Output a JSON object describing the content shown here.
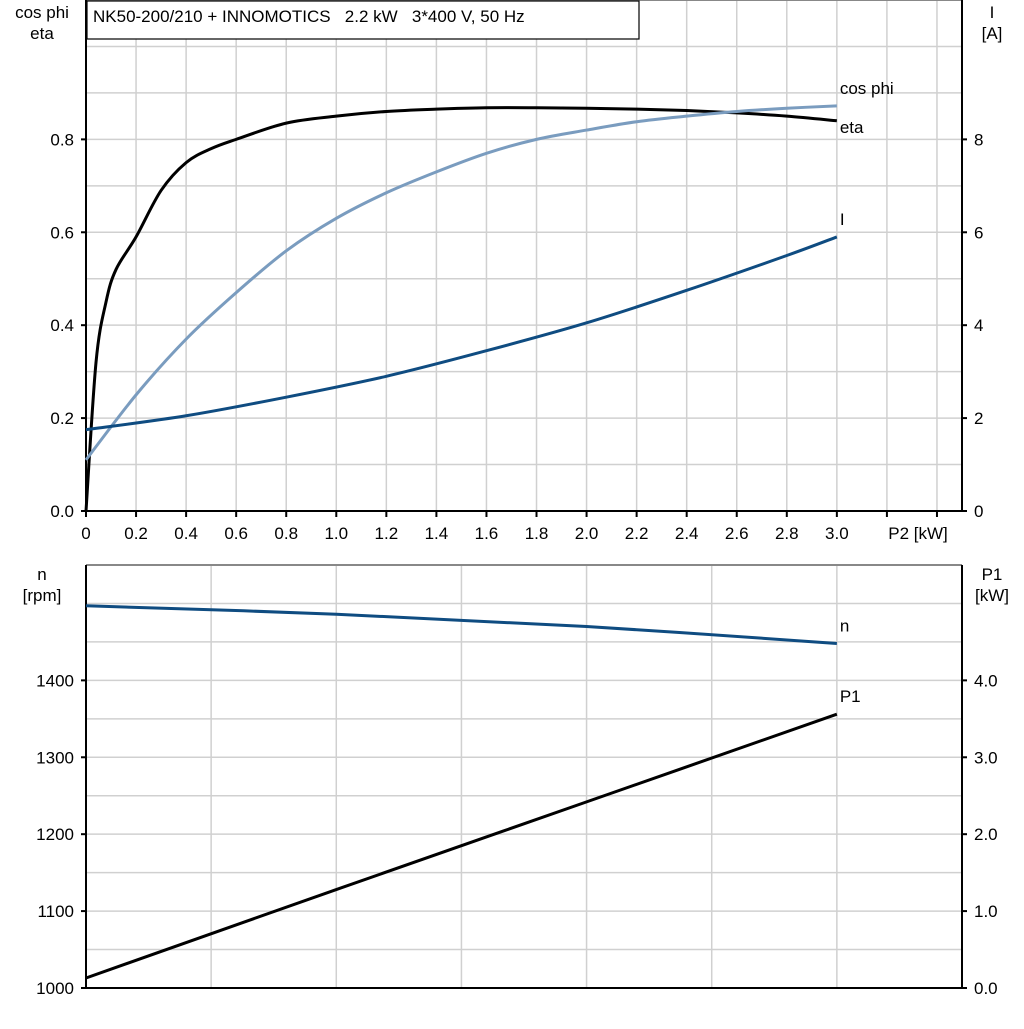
{
  "chart_data": [
    {
      "type": "line",
      "title": "NK50-200/210 + INNOMOTICS   2.2 kW   3*400 V, 50 Hz",
      "xlabel": "P2 [kW]",
      "ylabel_left": [
        "cos phi",
        "eta"
      ],
      "ylabel_right": [
        "I",
        "[A]"
      ],
      "xlim": [
        0,
        3.5
      ],
      "ylim_left": [
        0,
        1.1
      ],
      "ylim_right": [
        0,
        11
      ],
      "grid": true,
      "x_ticks": [
        "0",
        "0.2",
        "0.4",
        "0.6",
        "0.8",
        "1.0",
        "1.2",
        "1.4",
        "1.6",
        "1.8",
        "2.0",
        "2.2",
        "2.4",
        "2.6",
        "2.8",
        "3.0"
      ],
      "y_ticks_left": [
        "0.0",
        "0.2",
        "0.4",
        "0.6",
        "0.8"
      ],
      "y_ticks_right": [
        "0",
        "2",
        "4",
        "6",
        "8"
      ],
      "series": [
        {
          "name": "eta",
          "axis": "left",
          "color": "#000000",
          "x": [
            0,
            0.04,
            0.08,
            0.12,
            0.2,
            0.3,
            0.4,
            0.5,
            0.6,
            0.8,
            1.0,
            1.2,
            1.4,
            1.6,
            1.8,
            2.0,
            2.2,
            2.4,
            2.6,
            2.8,
            3.0
          ],
          "y": [
            0,
            0.32,
            0.45,
            0.52,
            0.59,
            0.69,
            0.75,
            0.78,
            0.8,
            0.835,
            0.85,
            0.86,
            0.865,
            0.868,
            0.868,
            0.867,
            0.865,
            0.862,
            0.857,
            0.85,
            0.84
          ]
        },
        {
          "name": "cos phi",
          "axis": "left",
          "color": "#7a9cbf",
          "x": [
            0,
            0.2,
            0.4,
            0.6,
            0.8,
            1.0,
            1.2,
            1.4,
            1.6,
            1.8,
            2.0,
            2.2,
            2.4,
            2.6,
            2.8,
            3.0
          ],
          "y": [
            0.11,
            0.25,
            0.37,
            0.47,
            0.56,
            0.63,
            0.685,
            0.73,
            0.77,
            0.8,
            0.82,
            0.838,
            0.85,
            0.86,
            0.867,
            0.872
          ]
        },
        {
          "name": "I",
          "axis": "right",
          "color": "#0f4c81",
          "x": [
            0,
            0.4,
            0.8,
            1.2,
            1.6,
            2.0,
            2.4,
            2.8,
            3.0
          ],
          "y": [
            1.75,
            2.05,
            2.45,
            2.9,
            3.45,
            4.05,
            4.75,
            5.5,
            5.9
          ]
        }
      ]
    },
    {
      "type": "line",
      "xlabel": "",
      "ylabel_left": [
        "n",
        "[rpm]"
      ],
      "ylabel_right": [
        "P1",
        "[kW]"
      ],
      "xlim": [
        0,
        3.5
      ],
      "ylim_left": [
        1000,
        1550
      ],
      "ylim_right": [
        0,
        5.5
      ],
      "grid": true,
      "y_ticks_left": [
        "1000",
        "1100",
        "1200",
        "1300",
        "1400"
      ],
      "y_ticks_right": [
        "0.0",
        "1.0",
        "2.0",
        "3.0",
        "4.0"
      ],
      "series": [
        {
          "name": "n",
          "axis": "left",
          "color": "#0f4c81",
          "x": [
            0,
            1.0,
            2.0,
            3.0
          ],
          "y": [
            1497,
            1486,
            1470,
            1448
          ]
        },
        {
          "name": "P1",
          "axis": "right",
          "color": "#000000",
          "x": [
            0,
            1.0,
            2.0,
            3.0
          ],
          "y": [
            0.13,
            1.28,
            2.42,
            3.56
          ]
        }
      ]
    }
  ]
}
